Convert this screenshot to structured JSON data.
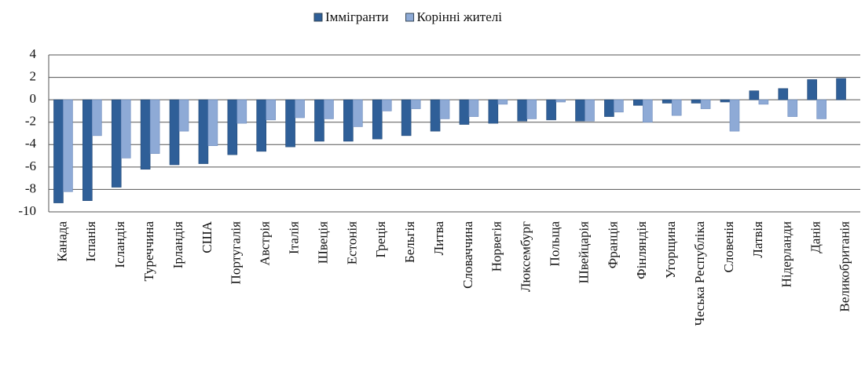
{
  "chart_data": {
    "type": "bar",
    "categories": [
      "Канада",
      "Іспанія",
      "Ісландія",
      "Туреччина",
      "Ірландія",
      "США",
      "Португалія",
      "Австрія",
      "Італія",
      "Швеція",
      "Естонія",
      "Греція",
      "Бельгія",
      "Литва",
      "Словаччина",
      "Норвегія",
      "Люксембург",
      "Польща",
      "Швейцарія",
      "Франція",
      "Фінляндія",
      "Угорщина",
      "Чеська Республіка",
      "Словенія",
      "Латвія",
      "Нідерланди",
      "Данія",
      "Великобританія"
    ],
    "series": [
      {
        "name": "Іммігранти",
        "color": "#2f5f98",
        "values": [
          -9.2,
          -9.0,
          -7.8,
          -6.2,
          -5.8,
          -5.7,
          -4.9,
          -4.6,
          -4.2,
          -3.7,
          -3.7,
          -3.5,
          -3.2,
          -2.8,
          -2.2,
          -2.1,
          -1.9,
          -1.8,
          -1.9,
          -1.5,
          -0.5,
          -0.3,
          -0.3,
          -0.2,
          0.8,
          1.0,
          1.8,
          1.9
        ]
      },
      {
        "name": "Корінні жителі",
        "color": "#8eaad6",
        "values": [
          -8.2,
          -3.2,
          -5.2,
          -4.8,
          -2.8,
          -4.1,
          -2.1,
          -1.8,
          -1.6,
          -1.7,
          -2.4,
          -1.0,
          -0.8,
          -1.7,
          -1.5,
          -0.4,
          -1.7,
          -0.2,
          -1.9,
          -1.1,
          -2.0,
          -1.4,
          -0.8,
          -2.8,
          -0.4,
          -1.5,
          -1.7,
          0
        ]
      }
    ],
    "ylim": [
      -10,
      4
    ],
    "yticks": [
      -10,
      -8,
      -6,
      -4,
      -2,
      0,
      2,
      4
    ],
    "grid": true,
    "legend": "top"
  }
}
